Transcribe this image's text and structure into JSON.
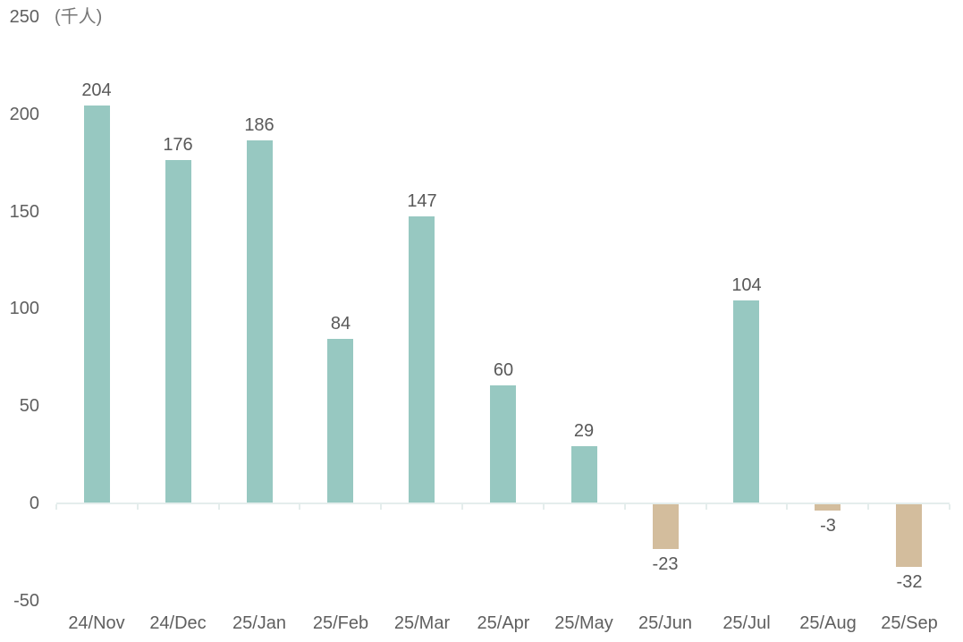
{
  "chart_data": {
    "type": "bar",
    "title": "",
    "xlabel": "",
    "ylabel": "(千人)",
    "unit_label": "(千人)",
    "categories": [
      "24/Nov",
      "24/Dec",
      "25/Jan",
      "25/Feb",
      "25/Mar",
      "25/Apr",
      "25/May",
      "25/Jun",
      "25/Jul",
      "25/Aug",
      "25/Sep"
    ],
    "values": [
      204,
      176,
      186,
      84,
      147,
      60,
      29,
      -23,
      104,
      -3,
      -32
    ],
    "y_ticks": [
      250,
      200,
      150,
      100,
      50,
      0,
      -50
    ],
    "ylim": [
      -50,
      250
    ],
    "grid": false,
    "legend_position": "none",
    "colors": {
      "positive_bar": "#97c8c1",
      "negative_bar": "#d3bd9d",
      "value_label_text": "#595959",
      "axis_tick_text": "#5f5f5f",
      "axis_line": "#e4edec"
    }
  }
}
